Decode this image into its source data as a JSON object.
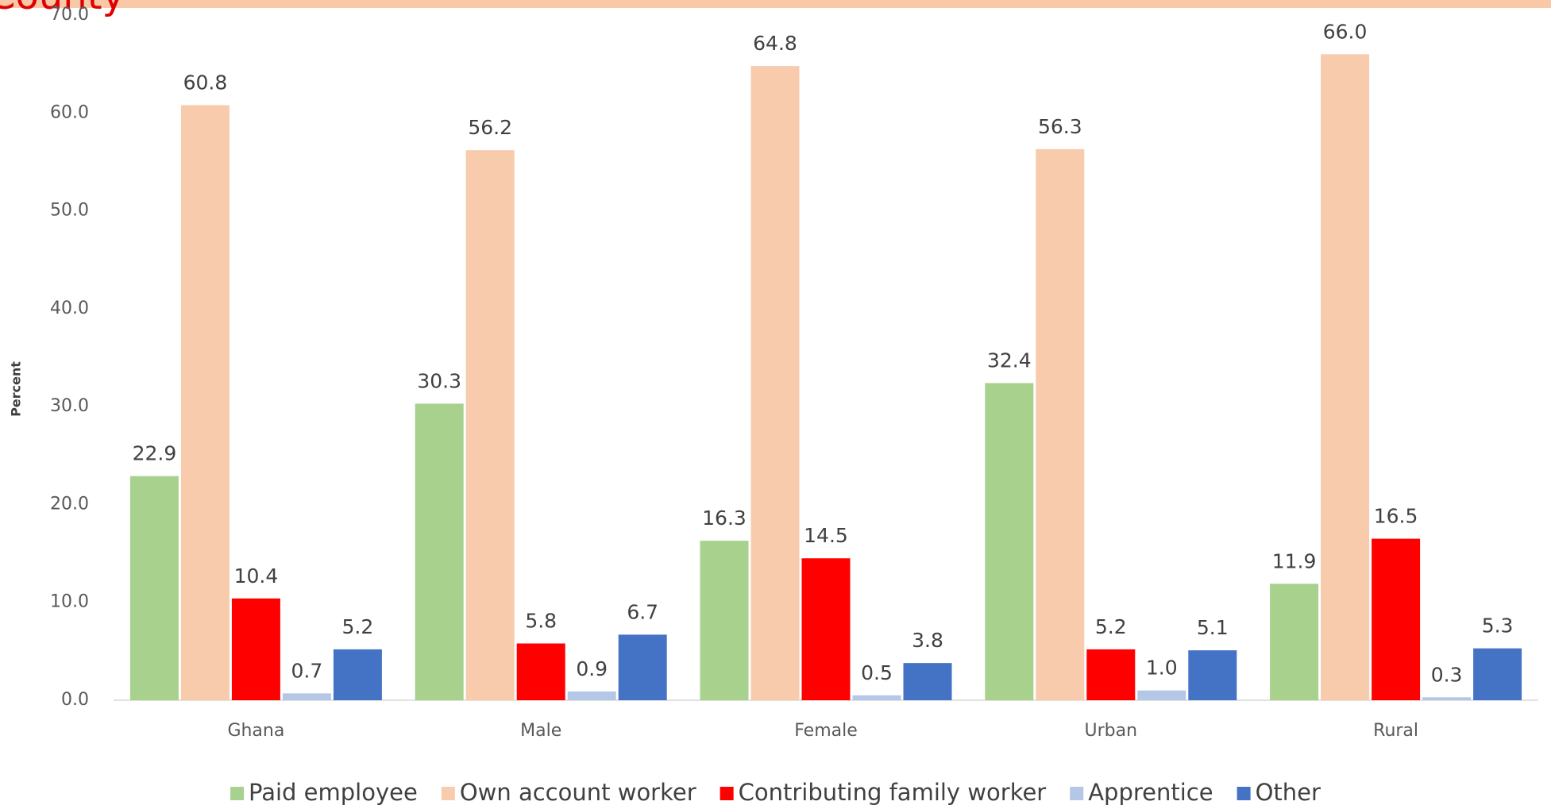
{
  "chart_data": {
    "type": "bar",
    "title": "County",
    "y_label": "Percent",
    "categories": [
      "Ghana",
      "Male",
      "Female",
      "Urban",
      "Rural"
    ],
    "series": [
      {
        "name": "Paid employee",
        "color": "#a9d18e",
        "values": [
          22.9,
          30.3,
          16.3,
          32.4,
          11.9
        ],
        "value_labels": [
          "22.9",
          "30.3",
          "16.3",
          "32.4",
          "11.9"
        ]
      },
      {
        "name": "Own account worker",
        "color": "#f8cbad",
        "values": [
          60.8,
          56.2,
          64.8,
          56.3,
          66
        ],
        "value_labels": [
          "60.8",
          "56.2",
          "64.8",
          "56.3",
          "66.0"
        ]
      },
      {
        "name": "Contributing family worker",
        "color": "#ff0000",
        "values": [
          10.4,
          5.8,
          14.5,
          5.2,
          16.5
        ],
        "value_labels": [
          "10.4",
          "5.8",
          "14.5",
          "5.2",
          "16.5"
        ]
      },
      {
        "name": "Apprentice",
        "color": "#b4c7e7",
        "values": [
          0.7,
          0.9,
          0.5,
          1,
          0.3
        ],
        "value_labels": [
          "0.7",
          "0.9",
          "0.5",
          "1.0",
          "0.3"
        ]
      },
      {
        "name": "Other",
        "color": "#4472c4",
        "values": [
          5.2,
          6.7,
          3.8,
          5.1,
          5.3
        ],
        "value_labels": [
          "5.2",
          "6.7",
          "3.8",
          "5.1",
          "5.3"
        ]
      }
    ],
    "ylim": [
      0,
      70
    ],
    "yticks": [
      {
        "value": 0,
        "label": "0.0"
      },
      {
        "value": 10,
        "label": "10.0"
      },
      {
        "value": 20,
        "label": "20.0"
      },
      {
        "value": 30,
        "label": "30.0"
      },
      {
        "value": 40,
        "label": "40.0"
      },
      {
        "value": 50,
        "label": "50.0"
      },
      {
        "value": 60,
        "label": "60.0"
      },
      {
        "value": 70,
        "label": "70.0"
      }
    ],
    "grid": false,
    "legend": "bottom"
  }
}
